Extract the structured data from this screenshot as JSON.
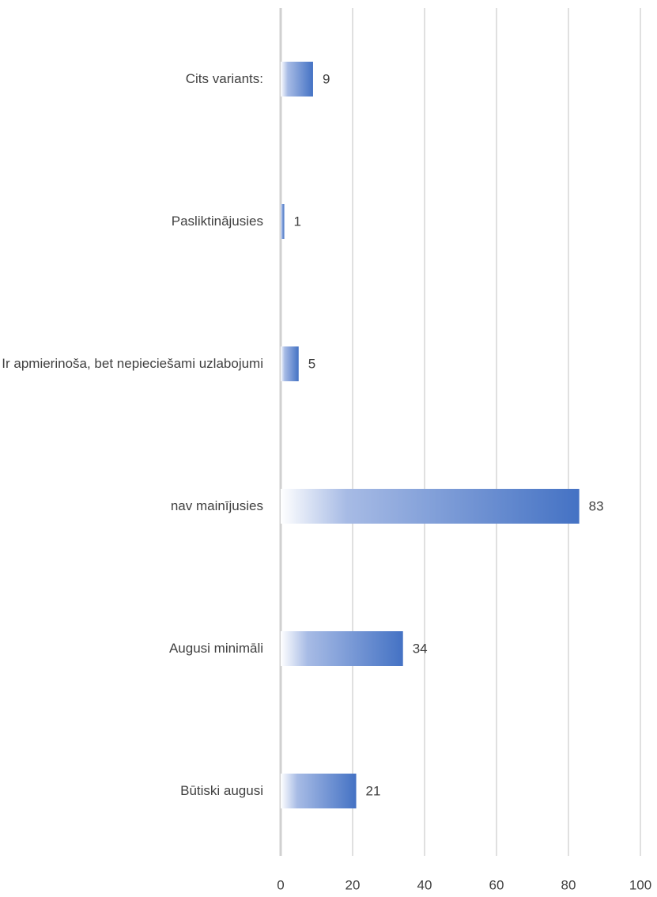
{
  "chart_data": {
    "type": "barh",
    "categories": [
      "Cits variants:",
      "Pasliktinājusies",
      "Ir apmierinoša, bet nepieciešami uzlabojumi",
      "nav mainījusies",
      "Augusi minimāli",
      "Būtiski augusi"
    ],
    "values": [
      9,
      1,
      5,
      83,
      34,
      21
    ],
    "color": "#4472c4",
    "xlim": [
      0,
      100
    ],
    "xticks": [
      0,
      20,
      40,
      60,
      80,
      100
    ],
    "grid": true
  }
}
